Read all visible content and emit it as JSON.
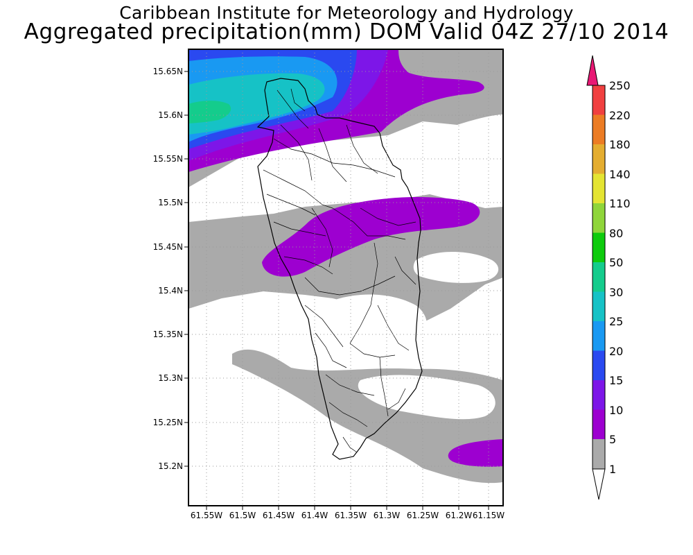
{
  "header": {
    "institute": "Caribbean Institute for Meteorology and Hydrology",
    "product": "Aggregated precipitation(mm) DOM Valid 04Z 27/10 2014"
  },
  "map": {
    "region": "Dominica",
    "lat_labels": [
      "15.65N",
      "15.6N",
      "15.55N",
      "15.5N",
      "15.45N",
      "15.4N",
      "15.35N",
      "15.3N",
      "15.25N",
      "15.2N"
    ],
    "lon_labels": [
      "61.55W",
      "61.5W",
      "61.45W",
      "61.4W",
      "61.35W",
      "61.3W",
      "61.25W",
      "61.2W",
      "61.15W"
    ],
    "gridlines": "dotted"
  },
  "legend": {
    "units": "mm",
    "levels": [
      "1",
      "5",
      "10",
      "15",
      "20",
      "25",
      "30",
      "50",
      "80",
      "110",
      "140",
      "180",
      "220",
      "250"
    ],
    "colors": [
      "#aaaaaa",
      "#9d00d0",
      "#7d16e8",
      "#2a49f0",
      "#1999f2",
      "#16c2c6",
      "#14cc8c",
      "#0ecb0d",
      "#8fd53a",
      "#e4e432",
      "#e4ad30",
      "#ec7c24",
      "#f04040",
      "#e81874"
    ],
    "below_color": "#ffffff"
  }
}
